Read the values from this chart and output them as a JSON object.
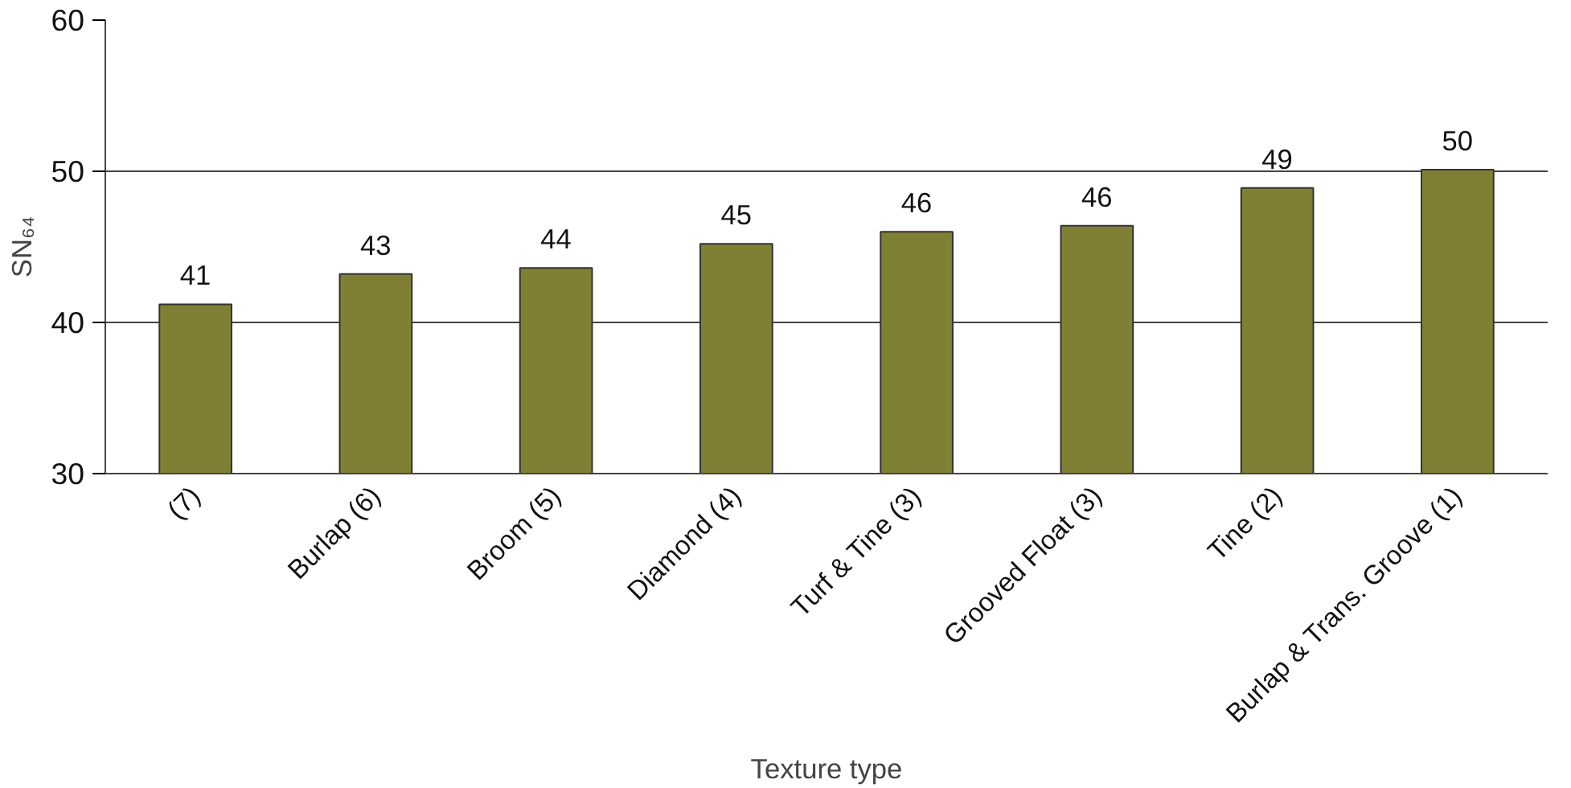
{
  "chart_data": {
    "type": "bar",
    "xlabel": "Texture type",
    "ylabel": "SN₆₄",
    "categories": [
      "(7)",
      "Burlap (6)",
      "Broom (5)",
      "Diamond (4)",
      "Turf & Tine (3)",
      "Grooved Float (3)",
      "Tine (2)",
      "Burlap & Trans. Groove (1)"
    ],
    "values": [
      41.2,
      43.2,
      43.6,
      45.2,
      46.0,
      46.4,
      48.9,
      50.1
    ],
    "value_labels": [
      "41",
      "43",
      "44",
      "45",
      "46",
      "46",
      "49",
      "50"
    ],
    "color": "#808034",
    "ylim": [
      30,
      60
    ],
    "yticks": [
      30,
      40,
      50,
      60
    ],
    "grid": "y"
  }
}
